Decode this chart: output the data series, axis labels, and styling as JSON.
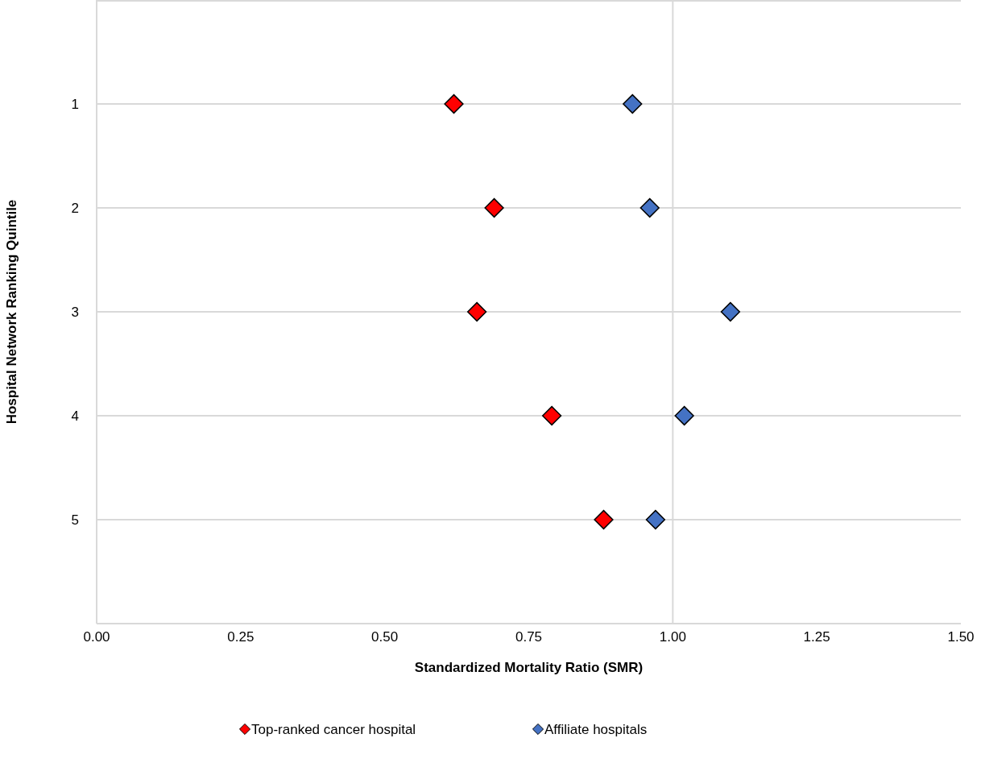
{
  "chart_data": {
    "type": "scatter",
    "orientation": "horizontal",
    "xlabel": "Standardized Mortality Ratio (SMR)",
    "ylabel": "Hospital Network Ranking Quintile",
    "categories": [
      "1",
      "2",
      "3",
      "4",
      "5"
    ],
    "series": [
      {
        "name": "Top-ranked cancer hospital",
        "color": "#ff0000",
        "values": [
          0.62,
          0.69,
          0.66,
          0.79,
          0.88
        ]
      },
      {
        "name": "Affiliate hospitals",
        "color": "#4472c4",
        "values": [
          0.93,
          0.96,
          1.1,
          1.02,
          0.97
        ]
      }
    ],
    "xlim": [
      0,
      1.5
    ],
    "xticks": [
      {
        "value": 0,
        "label": "0.00"
      },
      {
        "value": 0.25,
        "label": "0.25"
      },
      {
        "value": 0.5,
        "label": "0.50"
      },
      {
        "value": 0.75,
        "label": "0.75"
      },
      {
        "value": 1,
        "label": "1.00"
      },
      {
        "value": 1.25,
        "label": "1.25"
      },
      {
        "value": 1.5,
        "label": "1.50"
      }
    ],
    "ref_lines": [
      {
        "axis": "x",
        "value": 1,
        "color": "#d9d9d9"
      }
    ],
    "grid": "y",
    "legend": "bottom",
    "marker": "diamond"
  }
}
